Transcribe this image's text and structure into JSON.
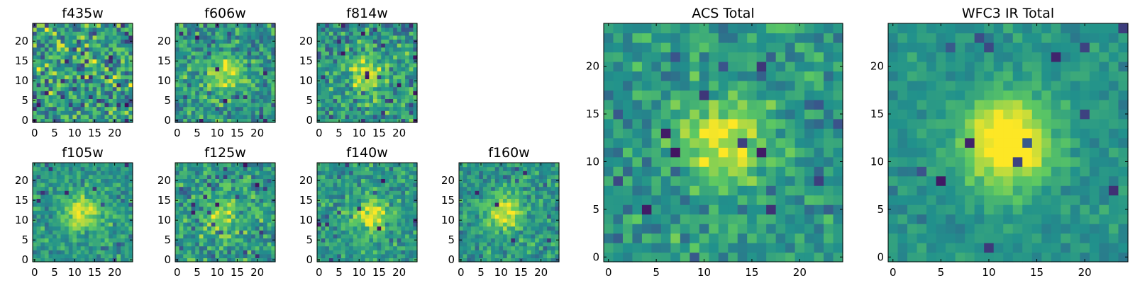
{
  "chart_data": [
    {
      "type": "heatmap",
      "title": "f435w",
      "xlim": [
        0,
        24
      ],
      "ylim": [
        0,
        24
      ],
      "x_ticks": [
        "0",
        "5",
        "10",
        "15",
        "20"
      ],
      "y_ticks": [
        "0",
        "5",
        "10",
        "15",
        "20"
      ],
      "grid": false,
      "peak": {
        "x": 12,
        "y": 12,
        "strength": 0.05
      },
      "noise": 0.55,
      "dark_pixels": 22,
      "seed": 11
    },
    {
      "type": "heatmap",
      "title": "f606w",
      "xlim": [
        0,
        24
      ],
      "ylim": [
        0,
        24
      ],
      "x_ticks": [
        "0",
        "5",
        "10",
        "15",
        "20"
      ],
      "y_ticks": [
        "0",
        "5",
        "10",
        "15",
        "20"
      ],
      "grid": false,
      "peak": {
        "x": 12,
        "y": 12,
        "strength": 0.35
      },
      "noise": 0.4,
      "dark_pixels": 16,
      "seed": 23
    },
    {
      "type": "heatmap",
      "title": "f814w",
      "xlim": [
        0,
        24
      ],
      "ylim": [
        0,
        24
      ],
      "x_ticks": [
        "0",
        "5",
        "10",
        "15",
        "20"
      ],
      "y_ticks": [
        "0",
        "5",
        "10",
        "15",
        "20"
      ],
      "grid": false,
      "peak": {
        "x": 12,
        "y": 12,
        "strength": 0.35
      },
      "noise": 0.42,
      "dark_pixels": 22,
      "seed": 37
    },
    {
      "type": "heatmap",
      "title": "f105w",
      "xlim": [
        0,
        24
      ],
      "ylim": [
        0,
        24
      ],
      "x_ticks": [
        "0",
        "5",
        "10",
        "15",
        "20"
      ],
      "y_ticks": [
        "0",
        "5",
        "10",
        "15",
        "20"
      ],
      "grid": false,
      "peak": {
        "x": 12,
        "y": 12,
        "strength": 0.42
      },
      "noise": 0.3,
      "dark_pixels": 10,
      "seed": 41
    },
    {
      "type": "heatmap",
      "title": "f125w",
      "xlim": [
        0,
        24
      ],
      "ylim": [
        0,
        24
      ],
      "x_ticks": [
        "0",
        "5",
        "10",
        "15",
        "20"
      ],
      "y_ticks": [
        "0",
        "5",
        "10",
        "15",
        "20"
      ],
      "grid": false,
      "peak": {
        "x": 11,
        "y": 11,
        "strength": 0.28
      },
      "noise": 0.38,
      "dark_pixels": 16,
      "seed": 53
    },
    {
      "type": "heatmap",
      "title": "f140w",
      "xlim": [
        0,
        24
      ],
      "ylim": [
        0,
        24
      ],
      "x_ticks": [
        "0",
        "5",
        "10",
        "15",
        "20"
      ],
      "y_ticks": [
        "0",
        "5",
        "10",
        "15",
        "20"
      ],
      "grid": false,
      "peak": {
        "x": 13,
        "y": 11,
        "strength": 0.4
      },
      "noise": 0.32,
      "dark_pixels": 10,
      "seed": 67
    },
    {
      "type": "heatmap",
      "title": "f160w",
      "xlim": [
        0,
        24
      ],
      "ylim": [
        0,
        24
      ],
      "x_ticks": [
        "0",
        "5",
        "10",
        "15",
        "20"
      ],
      "y_ticks": [
        "0",
        "5",
        "10",
        "15",
        "20"
      ],
      "grid": false,
      "peak": {
        "x": 11,
        "y": 12,
        "strength": 0.4
      },
      "noise": 0.3,
      "dark_pixels": 8,
      "seed": 79
    },
    {
      "type": "heatmap",
      "title": "ACS Total",
      "xlim": [
        0,
        24
      ],
      "ylim": [
        0,
        24
      ],
      "x_ticks": [
        "0",
        "5",
        "10",
        "15",
        "20"
      ],
      "y_ticks": [
        "0",
        "5",
        "10",
        "15",
        "20"
      ],
      "grid": false,
      "peak": {
        "x": 12,
        "y": 12,
        "strength": 0.42
      },
      "noise": 0.3,
      "dark_pixels": 14,
      "seed": 97
    },
    {
      "type": "heatmap",
      "title": "WFC3 IR Total",
      "xlim": [
        0,
        24
      ],
      "ylim": [
        0,
        24
      ],
      "x_ticks": [
        "0",
        "5",
        "10",
        "15",
        "20"
      ],
      "y_ticks": [
        "0",
        "5",
        "10",
        "15",
        "20"
      ],
      "grid": false,
      "peak": {
        "x": 12,
        "y": 12,
        "strength": 0.6
      },
      "noise": 0.16,
      "dark_pixels": 14,
      "seed": 113
    }
  ],
  "colormap": [
    "#440154",
    "#3b528b",
    "#21918c",
    "#5ec962",
    "#fde725"
  ]
}
